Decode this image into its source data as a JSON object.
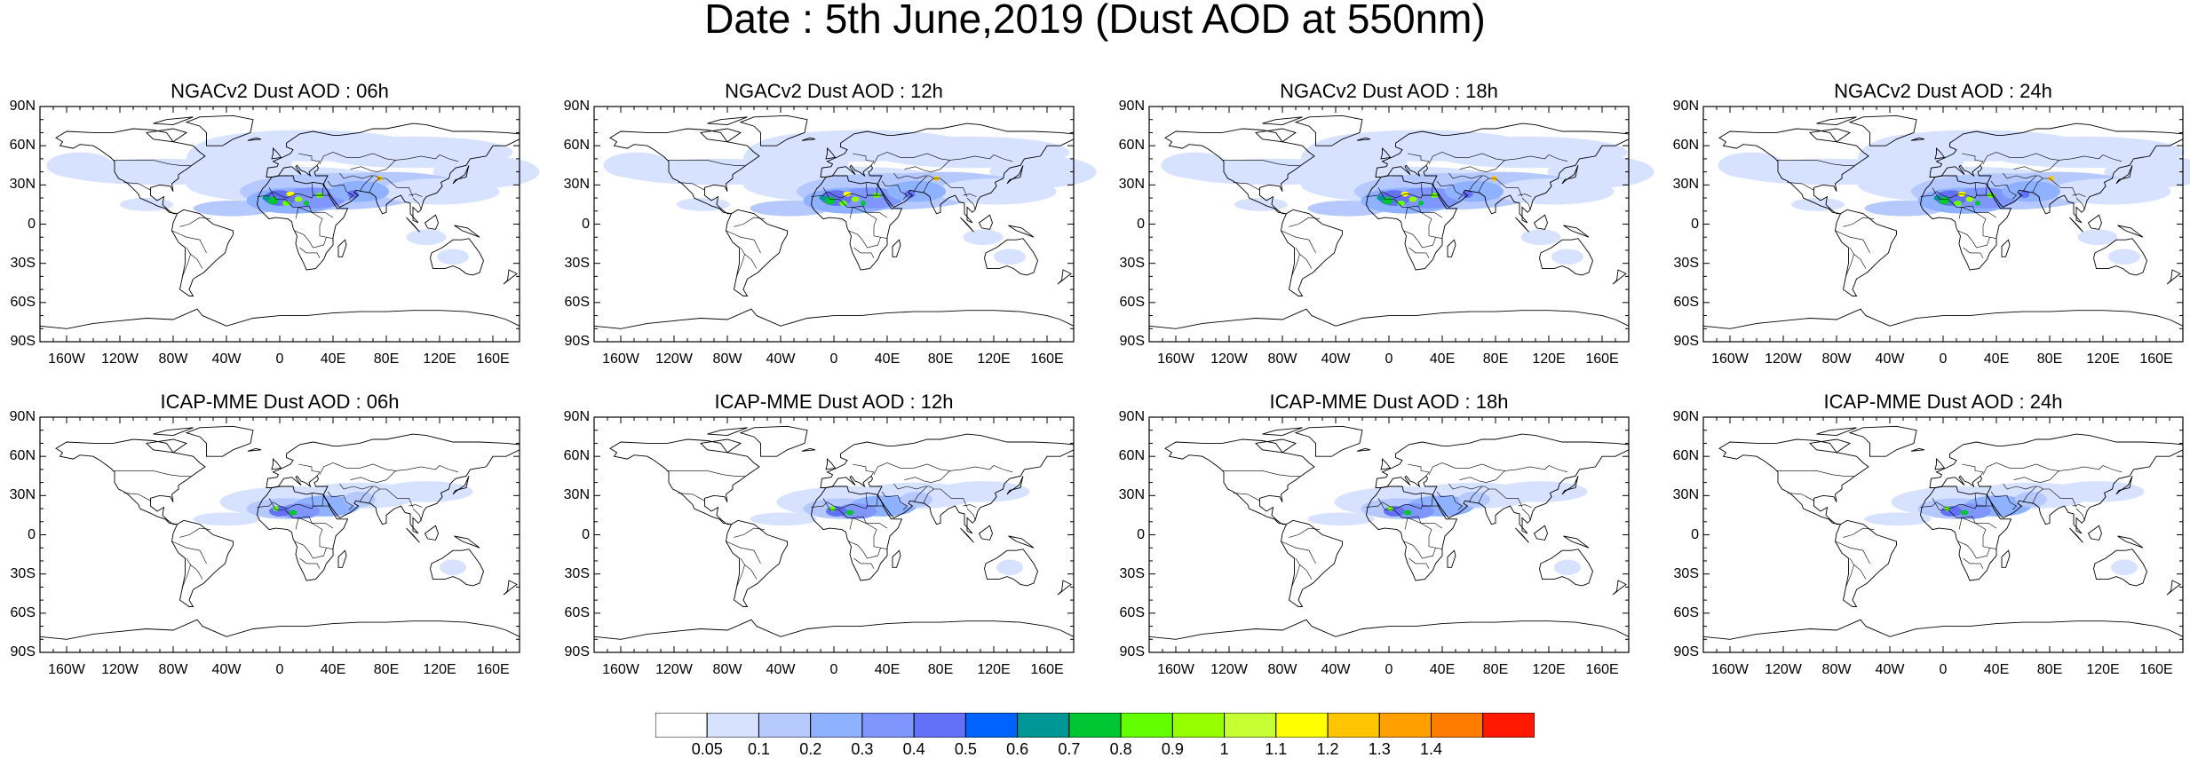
{
  "figure": {
    "title": "Date : 5th June,2019 (Dust AOD at 550nm)"
  },
  "panels": [
    {
      "title": "NGACv2 Dust AOD : 06h",
      "model": "NGACv2"
    },
    {
      "title": "NGACv2 Dust AOD : 12h",
      "model": "NGACv2"
    },
    {
      "title": "NGACv2 Dust AOD : 18h",
      "model": "NGACv2"
    },
    {
      "title": "NGACv2 Dust AOD : 24h",
      "model": "NGACv2"
    },
    {
      "title": "ICAP-MME Dust AOD : 06h",
      "model": "ICAP-MME"
    },
    {
      "title": "ICAP-MME Dust AOD : 12h",
      "model": "ICAP-MME"
    },
    {
      "title": "ICAP-MME Dust AOD : 18h",
      "model": "ICAP-MME"
    },
    {
      "title": "ICAP-MME Dust AOD : 24h",
      "model": "ICAP-MME"
    }
  ],
  "axes": {
    "lat_labels": [
      "90N",
      "60N",
      "30N",
      "0",
      "30S",
      "60S",
      "90S"
    ],
    "lat_values": [
      90,
      60,
      30,
      0,
      -30,
      -60,
      -90
    ],
    "lon_labels": [
      "160W",
      "120W",
      "80W",
      "40W",
      "0",
      "40E",
      "80E",
      "120E",
      "160E"
    ],
    "lon_values": [
      -160,
      -120,
      -80,
      -40,
      0,
      40,
      80,
      120,
      160
    ]
  },
  "colorbar": {
    "labels": [
      "0.05",
      "0.1",
      "0.2",
      "0.3",
      "0.4",
      "0.5",
      "0.6",
      "0.7",
      "0.8",
      "0.9",
      "1",
      "1.1",
      "1.2",
      "1.3",
      "1.4"
    ],
    "colors": [
      "#ffffff",
      "#d6e2ff",
      "#b5c9ff",
      "#8eb2ff",
      "#7f96ff",
      "#6370f8",
      "#0063ff",
      "#009696",
      "#00c633",
      "#63ff00",
      "#96ff00",
      "#c6ff33",
      "#ffff00",
      "#ffc600",
      "#ffa000",
      "#ff7c00",
      "#ff1900"
    ]
  },
  "colors": {
    "coastline": "#000000",
    "background": "#ffffff"
  }
}
